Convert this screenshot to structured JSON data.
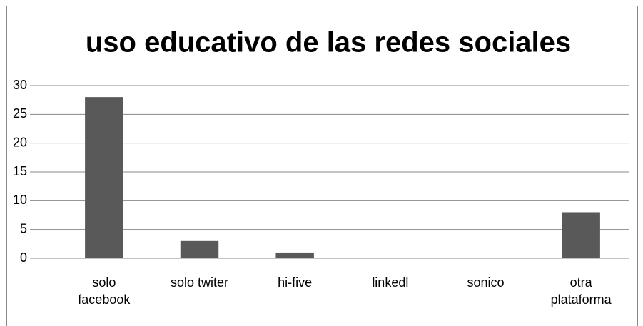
{
  "chart_data": {
    "type": "bar",
    "title": "uso educativo de las redes sociales",
    "categories": [
      "solo facebook",
      "solo twiter",
      "hi-five",
      "linkedl",
      "sonico",
      "otra plataforma"
    ],
    "values": [
      28,
      3,
      1,
      0,
      0,
      8
    ],
    "color": "#595959",
    "ylim": [
      0,
      30
    ],
    "yticks": [
      0,
      5,
      10,
      15,
      20,
      25,
      30
    ],
    "grid": true
  }
}
